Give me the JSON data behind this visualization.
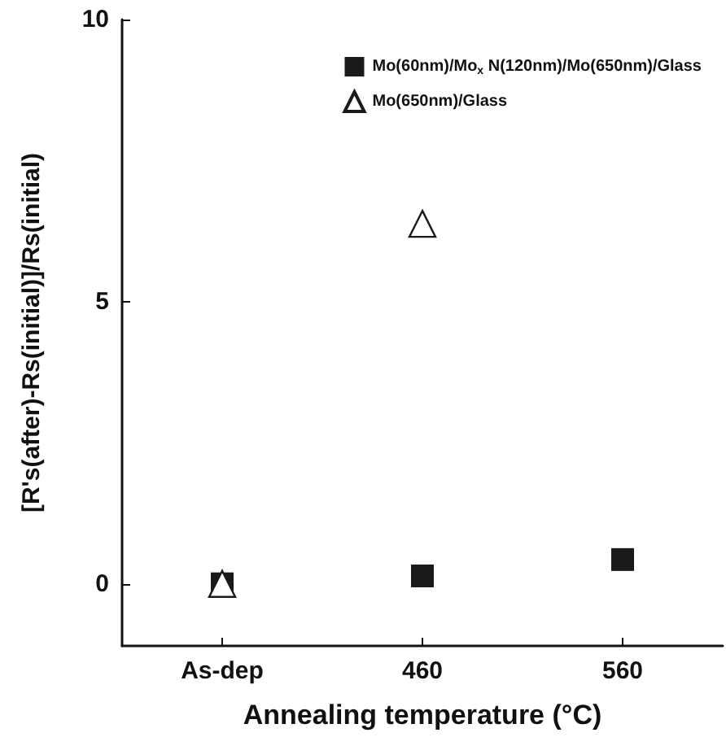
{
  "chart_data": {
    "type": "scatter",
    "xlabel": "Annealing temperature (°C)",
    "ylabel": "[R's(after)-Rs(initial)]/Rs(initial)",
    "categories": [
      "As-dep",
      "460",
      "560"
    ],
    "series": [
      {
        "name": "Mo(60nm)/Mo$_{x}$ N(120nm)/Mo(650nm)/Glass",
        "color": "#1a1a1a",
        "marker": "square",
        "values": [
          0,
          0.14,
          0.43
        ]
      },
      {
        "name": "Mo(650nm)/Glass",
        "color": "#1a1a1a",
        "marker": "triangle",
        "values": [
          0,
          6.38,
          null
        ]
      }
    ],
    "ylim": [
      -1.1,
      10
    ],
    "yticks": [
      0,
      5,
      10
    ],
    "legend": "top right"
  }
}
